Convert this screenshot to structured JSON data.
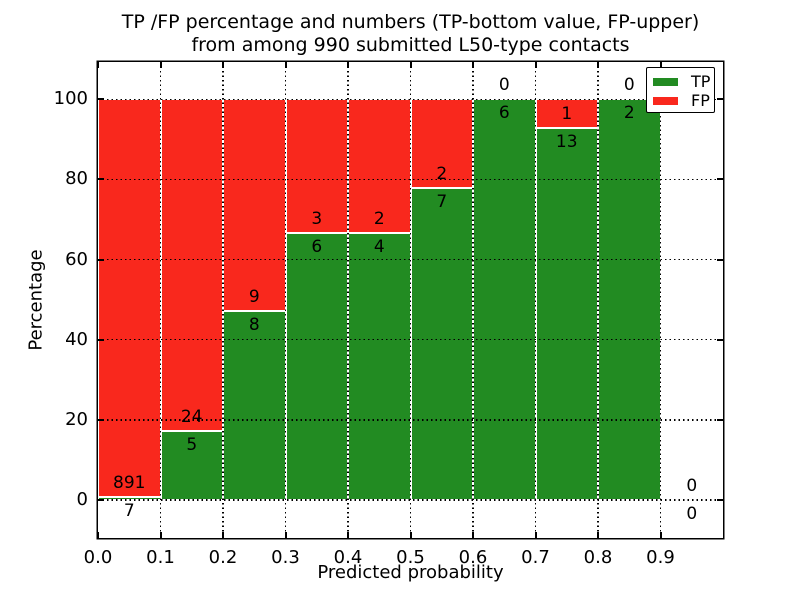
{
  "chart_data": {
    "type": "bar",
    "stacked": true,
    "normalized": "percent",
    "title": "TP /FP percentage and numbers (TP-bottom value, FP-upper) from among 990 submitted L50-type contacts",
    "title_lines": [
      "TP /FP percentage and numbers (TP-bottom value, FP-upper)",
      "from among 990 submitted L50-type contacts"
    ],
    "xlabel": "Predicted probability",
    "ylabel": "Percentage",
    "xlim": [
      0.0,
      1.0
    ],
    "ylim": [
      -9.5,
      109.3
    ],
    "x_tick_labels": [
      "0.0",
      "0.1",
      "0.2",
      "0.3",
      "0.4",
      "0.5",
      "0.6",
      "0.7",
      "0.8",
      "0.9"
    ],
    "y_tick_values": [
      0,
      20,
      40,
      60,
      80,
      100
    ],
    "grid": "dotted",
    "total_contacts": 990,
    "bins": [
      {
        "x_start": 0.0,
        "x_end": 0.1,
        "tp": 7,
        "fp": 891
      },
      {
        "x_start": 0.1,
        "x_end": 0.2,
        "tp": 5,
        "fp": 24
      },
      {
        "x_start": 0.2,
        "x_end": 0.3,
        "tp": 8,
        "fp": 9
      },
      {
        "x_start": 0.3,
        "x_end": 0.4,
        "tp": 6,
        "fp": 3
      },
      {
        "x_start": 0.4,
        "x_end": 0.5,
        "tp": 4,
        "fp": 2
      },
      {
        "x_start": 0.5,
        "x_end": 0.6,
        "tp": 7,
        "fp": 2
      },
      {
        "x_start": 0.6,
        "x_end": 0.7,
        "tp": 6,
        "fp": 0
      },
      {
        "x_start": 0.7,
        "x_end": 0.8,
        "tp": 13,
        "fp": 1
      },
      {
        "x_start": 0.8,
        "x_end": 0.9,
        "tp": 2,
        "fp": 0
      },
      {
        "x_start": 0.9,
        "x_end": 1.0,
        "tp": 0,
        "fp": 0
      }
    ],
    "colors": {
      "tp": "#228b22",
      "fp": "#f9281d"
    },
    "legend": {
      "position": "upper right",
      "entries": [
        {
          "label": "TP",
          "color": "#228b22"
        },
        {
          "label": "FP",
          "color": "#f9281d"
        }
      ]
    }
  }
}
